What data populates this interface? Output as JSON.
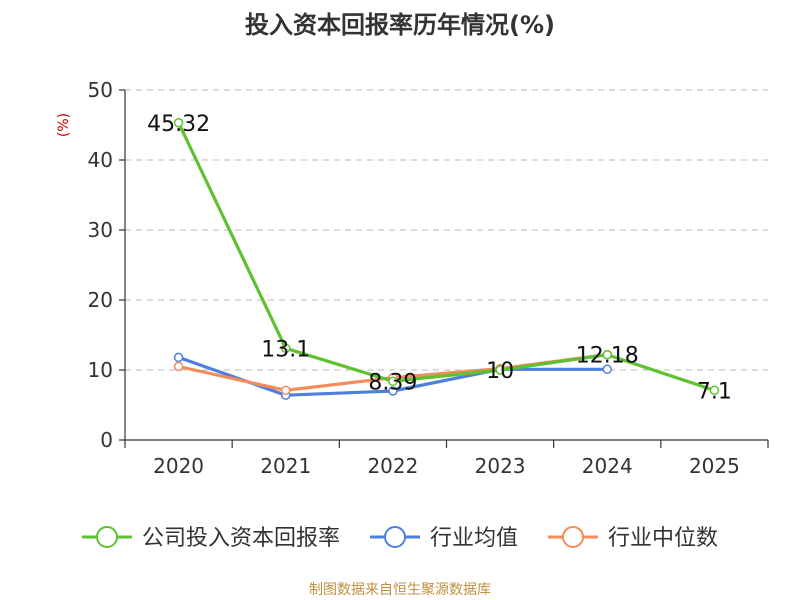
{
  "chart_data": {
    "type": "line",
    "title": "投入资本回报率历年情况(%)",
    "ylabel": "(%)",
    "xlabel": "",
    "categories": [
      "2020",
      "2021",
      "2022",
      "2023",
      "2024",
      "2025"
    ],
    "ylim": [
      0,
      50
    ],
    "yticks": [
      0,
      10,
      20,
      30,
      40,
      50
    ],
    "grid": true,
    "series": [
      {
        "name": "公司投入资本回报率",
        "color": "#5ec12f",
        "values": [
          45.32,
          13.1,
          8.39,
          10,
          12.18,
          7.1
        ],
        "labels": [
          "45.32",
          "13.1",
          "8.39",
          "10",
          "12.18",
          "7.1"
        ]
      },
      {
        "name": "行业均值",
        "color": "#4f7fdc",
        "values": [
          11.8,
          6.4,
          7.0,
          10.1,
          10.1,
          null
        ]
      },
      {
        "name": "行业中位数",
        "color": "#f28c5a",
        "values": [
          10.5,
          7.1,
          8.9,
          10.2,
          12.2,
          null
        ]
      }
    ],
    "legend_position": "bottom",
    "source": "制图数据来自恒生聚源数据库"
  },
  "colors": {
    "axis": "#333333",
    "grid": "#c8c8c8",
    "ylabel": "#cc0000",
    "source": "#c09040"
  }
}
